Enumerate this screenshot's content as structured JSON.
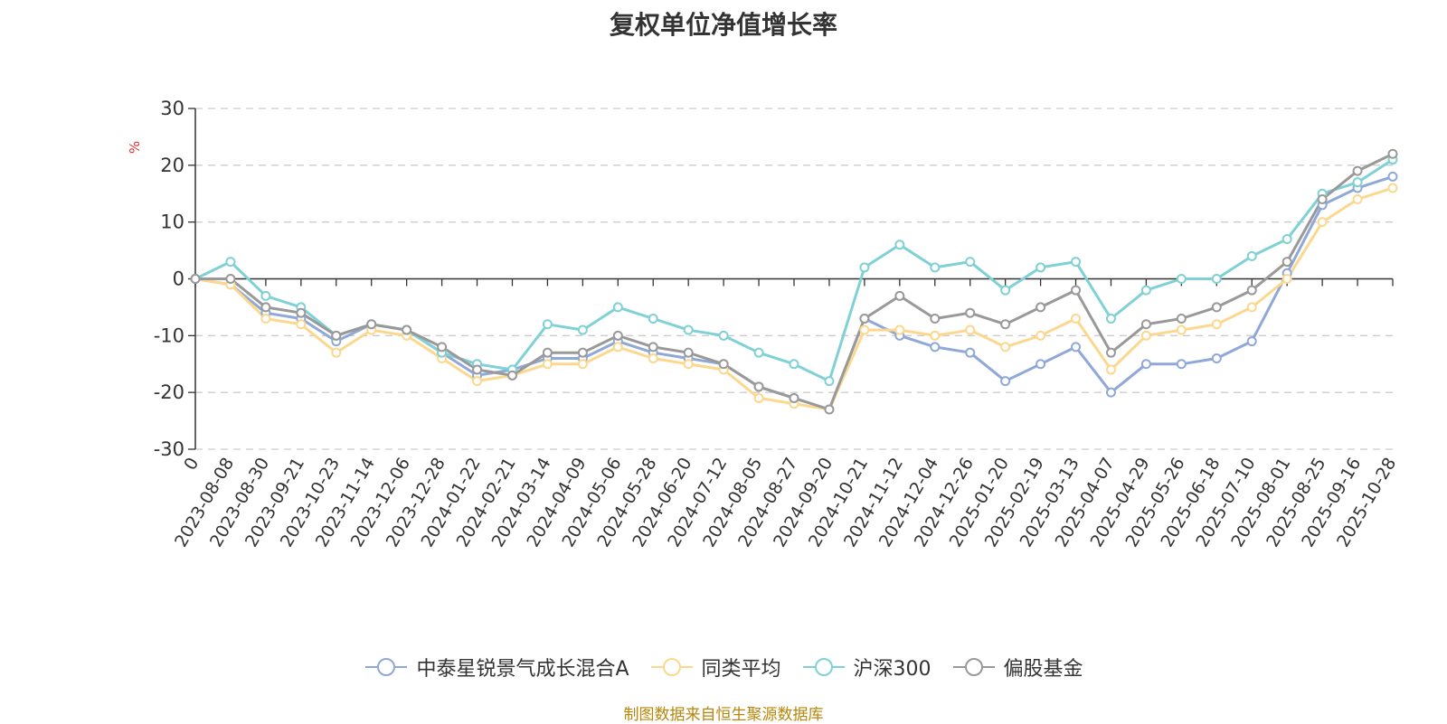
{
  "title": "复权单位净值增长率",
  "source_note": "制图数据来自恒生聚源数据库",
  "chart_data": {
    "type": "line",
    "title": "复权单位净值增长率",
    "ylabel": "%",
    "ylim": [
      -30,
      30
    ],
    "yticks": [
      30,
      20,
      10,
      0,
      -10,
      -20,
      -30
    ],
    "grid": true,
    "legend_position": "bottom",
    "x_labels": [
      "0",
      "2023-08-08",
      "2023-08-30",
      "2023-09-21",
      "2023-10-23",
      "2023-11-14",
      "2023-12-06",
      "2023-12-28",
      "2024-01-22",
      "2024-02-21",
      "2024-03-14",
      "2024-04-09",
      "2024-05-06",
      "2024-05-28",
      "2024-06-20",
      "2024-07-12",
      "2024-08-05",
      "2024-08-27",
      "2024-09-20",
      "2024-10-21",
      "2024-11-12",
      "2024-12-04",
      "2024-12-26",
      "2025-01-20",
      "2025-02-19",
      "2025-03-13",
      "2025-04-07",
      "2025-04-29",
      "2025-05-26",
      "2025-06-18",
      "2025-07-10",
      "2025-08-01",
      "2025-08-25",
      "2025-09-16",
      "2025-10-28"
    ],
    "series": [
      {
        "name": "中泰星锐景气成长混合A",
        "color": "#8fa8d8",
        "values": [
          0,
          -1,
          -6,
          -7,
          -11,
          -8,
          -9,
          -13,
          -17,
          -16,
          -14,
          -14,
          -11,
          -13,
          -14,
          -15,
          -19,
          -21,
          -23,
          -7,
          -10,
          -12,
          -13,
          -18,
          -15,
          -12,
          -20,
          -15,
          -15,
          -14,
          -11,
          1,
          13,
          16,
          18
        ]
      },
      {
        "name": "同类平均",
        "color": "#fcd88e",
        "values": [
          0,
          -1,
          -7,
          -8,
          -13,
          -9,
          -10,
          -14,
          -18,
          -17,
          -15,
          -15,
          -12,
          -14,
          -15,
          -16,
          -21,
          -22,
          -23,
          -9,
          -9,
          -10,
          -9,
          -12,
          -10,
          -7,
          -16,
          -10,
          -9,
          -8,
          -5,
          0,
          10,
          14,
          16
        ]
      },
      {
        "name": "沪深300",
        "color": "#7fd1d5",
        "values": [
          0,
          3,
          -3,
          -5,
          -10,
          -8,
          -9,
          -13,
          -15,
          -16,
          -8,
          -9,
          -5,
          -7,
          -9,
          -10,
          -13,
          -15,
          -18,
          2,
          6,
          2,
          3,
          -2,
          2,
          3,
          -7,
          -2,
          0,
          0,
          4,
          7,
          15,
          17,
          21
        ]
      },
      {
        "name": "偏股基金",
        "color": "#999999",
        "values": [
          0,
          0,
          -5,
          -6,
          -10,
          -8,
          -9,
          -12,
          -16,
          -17,
          -13,
          -13,
          -10,
          -12,
          -13,
          -15,
          -19,
          -21,
          -23,
          -7,
          -3,
          -7,
          -6,
          -8,
          -5,
          -2,
          -13,
          -8,
          -7,
          -5,
          -2,
          3,
          14,
          19,
          22
        ]
      }
    ]
  }
}
